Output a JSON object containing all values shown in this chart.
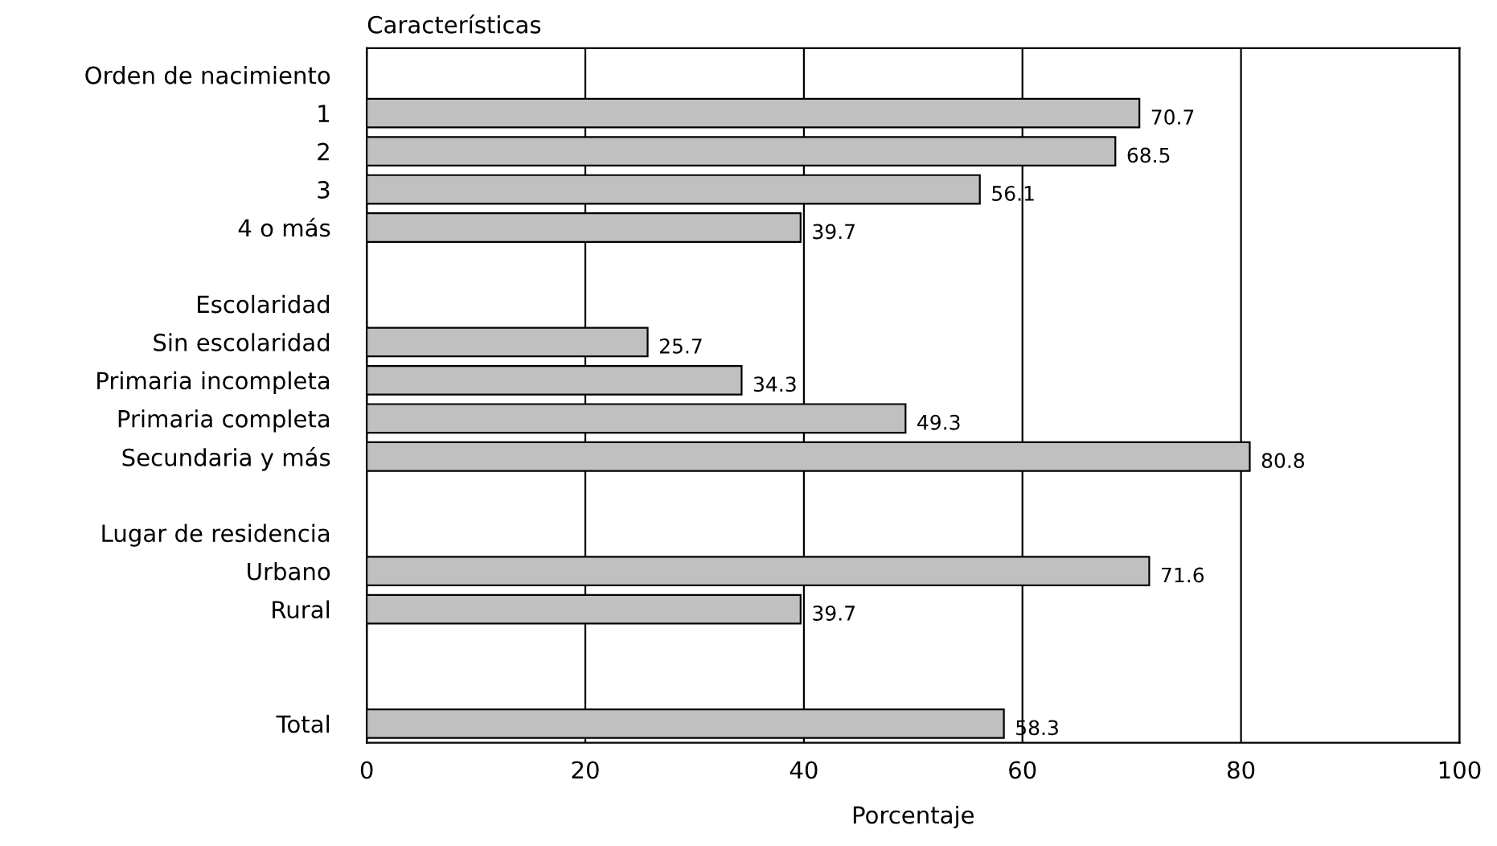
{
  "chart_data": {
    "type": "bar",
    "orientation": "horizontal",
    "categories": [
      "Orden de nacimiento",
      "1",
      "2",
      "3",
      "4 o más",
      null,
      "Escolaridad",
      "Sin escolaridad",
      "Primaria incompleta",
      "Primaria completa",
      "Secundaria y más",
      null,
      "Lugar de residencia",
      "Urbano",
      "Rural",
      null,
      null,
      "Total"
    ],
    "values": [
      null,
      70.7,
      68.5,
      56.1,
      39.7,
      null,
      null,
      25.7,
      34.3,
      49.3,
      80.8,
      null,
      null,
      71.6,
      39.7,
      null,
      null,
      58.3
    ],
    "color": "#c0c0c0",
    "ylabel": "Características",
    "xlabel": "Porcentaje",
    "xlim": [
      0,
      100
    ],
    "xticks": [
      0,
      20,
      40,
      60,
      80,
      100
    ],
    "grid": "x",
    "data_labels": true
  }
}
